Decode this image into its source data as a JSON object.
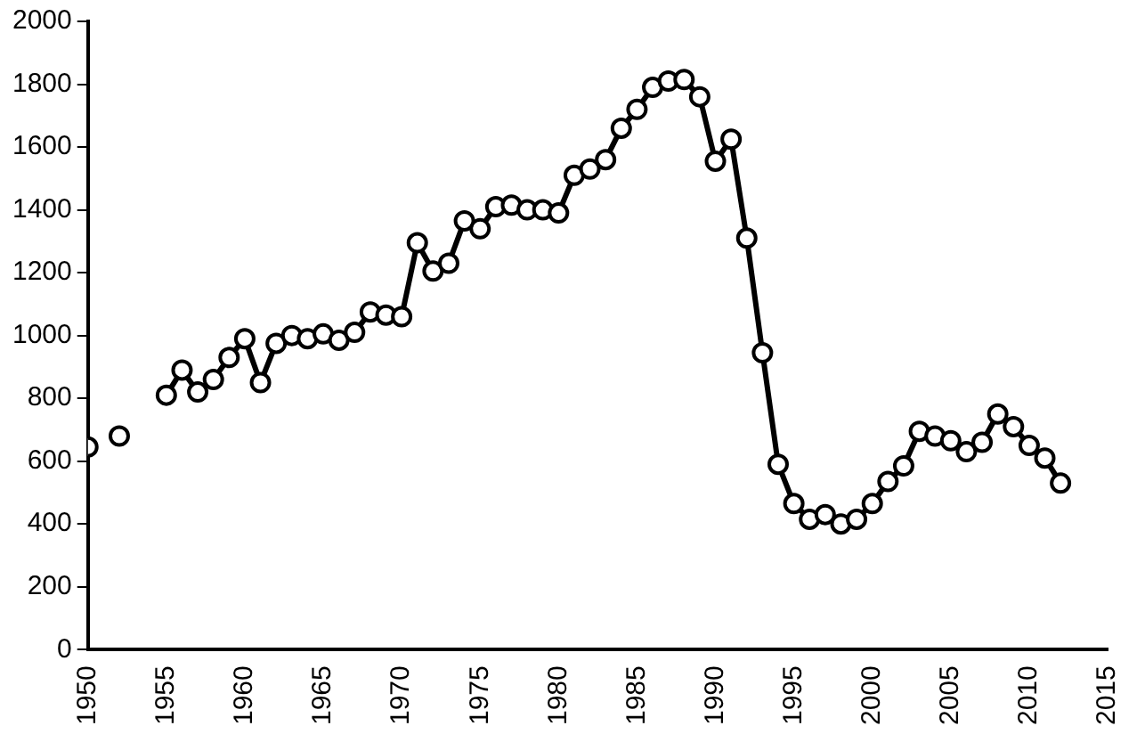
{
  "chart_data": {
    "type": "line",
    "x": [
      1950,
      1951,
      1952,
      1953,
      1954,
      1955,
      1956,
      1957,
      1958,
      1959,
      1960,
      1961,
      1962,
      1963,
      1964,
      1965,
      1966,
      1967,
      1968,
      1969,
      1970,
      1971,
      1972,
      1973,
      1974,
      1975,
      1976,
      1977,
      1978,
      1979,
      1980,
      1981,
      1982,
      1983,
      1984,
      1985,
      1986,
      1987,
      1988,
      1989,
      1990,
      1991,
      1992,
      1993,
      1994,
      1995,
      1996,
      1997,
      1998,
      1999,
      2000,
      2001,
      2002,
      2003,
      2004,
      2005,
      2006,
      2007,
      2008,
      2009,
      2010,
      2011,
      2012
    ],
    "series": [
      {
        "color": "#000000",
        "values": [
          645,
          null,
          680,
          null,
          null,
          810,
          890,
          820,
          860,
          930,
          990,
          850,
          975,
          1000,
          990,
          1005,
          985,
          1010,
          1075,
          1065,
          1060,
          1295,
          1205,
          1230,
          1365,
          1340,
          1410,
          1415,
          1400,
          1400,
          1390,
          1510,
          1530,
          1560,
          1660,
          1720,
          1790,
          1810,
          1815,
          1760,
          1555,
          1625,
          1310,
          945,
          590,
          465,
          415,
          430,
          400,
          415,
          465,
          535,
          585,
          695,
          680,
          665,
          630,
          660,
          750,
          710,
          650,
          610,
          530
        ]
      }
    ],
    "xlim": [
      1950,
      2015
    ],
    "xticks": [
      1950,
      1955,
      1960,
      1965,
      1970,
      1975,
      1980,
      1985,
      1990,
      1995,
      2000,
      2005,
      2010,
      2015
    ],
    "ylim": [
      0,
      2000
    ],
    "yticks": [
      0,
      200,
      400,
      600,
      800,
      1000,
      1200,
      1400,
      1600,
      1800,
      2000
    ],
    "grid": false,
    "legend": false,
    "marker": "circle",
    "line_style": "solid"
  }
}
